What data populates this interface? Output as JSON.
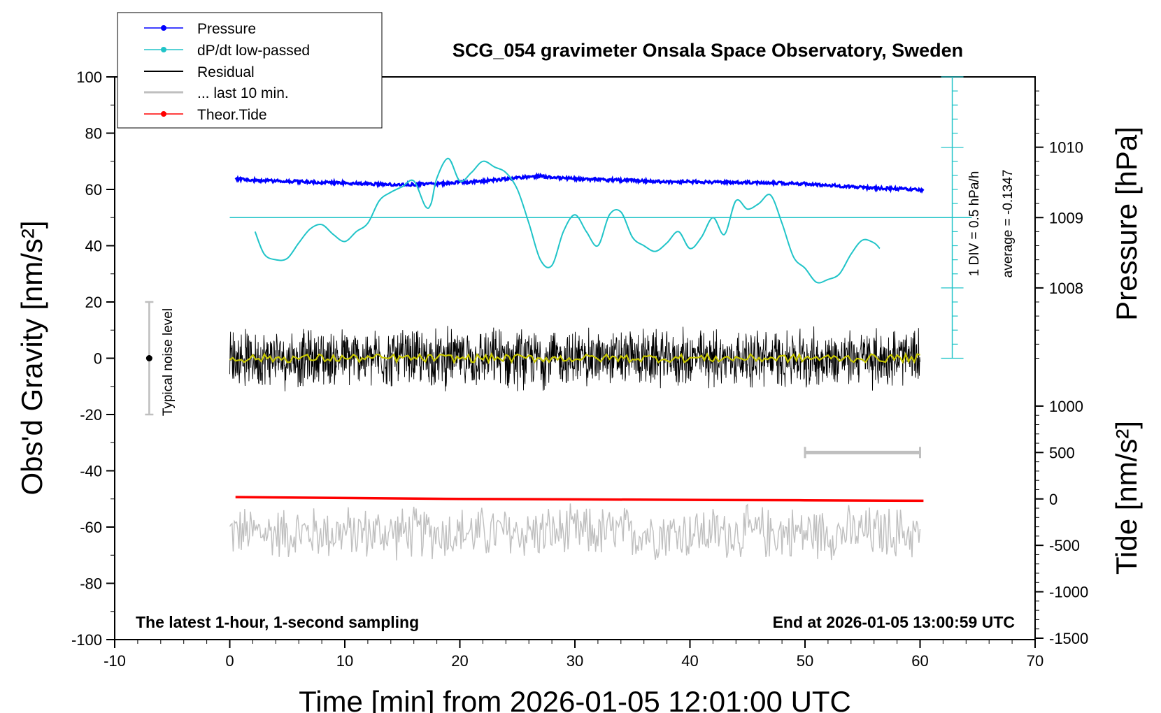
{
  "title": "SCG_054 gravimeter Onsala Space Observatory, Sweden",
  "note_left": "The latest 1-hour, 1-second sampling",
  "note_right": "End at 2026-01-05 13:00:59 UTC",
  "noise_label": "Typical noise level",
  "div_note": "1 DIV = 0.5 hPa/h",
  "average_note": "average = -0.1347",
  "colors": {
    "pressure": "#0000ff",
    "dpdt": "#20c4c8",
    "residual": "#000000",
    "smoothed": "#c8c800",
    "last10": "#bfbfbf",
    "tide": "#ff0000"
  },
  "chart_data": {
    "type": "line",
    "title": "SCG_054 gravimeter Onsala Space Observatory, Sweden",
    "xlabel": "Time [min] from 2026-01-05 12:01:00 UTC",
    "ylabel": "Obs'd Gravity [nm/s²]",
    "y2label_pressure": "Pressure [hPa]",
    "y2label_tide": "Tide [nm/s²]",
    "xlim": [
      -10,
      70
    ],
    "ylim": [
      -100,
      100
    ],
    "pressure_lim": [
      1007,
      1011
    ],
    "tide_lim": [
      -1500,
      1500
    ],
    "x_ticks": [
      "-10",
      "0",
      "10",
      "20",
      "30",
      "40",
      "50",
      "60",
      "70"
    ],
    "y_ticks": [
      "100",
      "80",
      "60",
      "40",
      "20",
      "0",
      "-20",
      "-40",
      "-60",
      "-80",
      "-100"
    ],
    "pressure_ticks": [
      "1010",
      "1009",
      "1008"
    ],
    "tide_ticks": [
      "1000",
      "500",
      "0",
      "-500",
      "-1000",
      "-1500"
    ],
    "legend": [
      "Pressure",
      "dP/dt low-passed",
      "Residual",
      "... last 10 min.",
      "Theor.Tide"
    ],
    "legend_position": "top-left",
    "grid": false,
    "series": [
      {
        "name": "Pressure",
        "axis": "pressure",
        "x": [
          0.5,
          2,
          4,
          6,
          8,
          10,
          12,
          14,
          16,
          18,
          20,
          22,
          24,
          26,
          27,
          28,
          30,
          32,
          34,
          36,
          38,
          40,
          42,
          44,
          46,
          48,
          50,
          52,
          54,
          56,
          58,
          60.3
        ],
        "values": [
          1009.55,
          1009.53,
          1009.52,
          1009.51,
          1009.5,
          1009.49,
          1009.48,
          1009.47,
          1009.47,
          1009.48,
          1009.5,
          1009.52,
          1009.55,
          1009.58,
          1009.59,
          1009.57,
          1009.55,
          1009.54,
          1009.53,
          1009.52,
          1009.51,
          1009.51,
          1009.5,
          1009.5,
          1009.5,
          1009.49,
          1009.48,
          1009.46,
          1009.44,
          1009.42,
          1009.41,
          1009.39
        ]
      },
      {
        "name": "dP/dt low-passed",
        "axis": "gravity",
        "x": [
          2.2,
          3,
          4,
          5,
          6,
          7,
          8,
          9,
          10,
          11,
          12,
          13,
          14,
          15,
          16,
          17,
          17.5,
          18,
          19,
          20,
          21,
          22,
          23,
          24,
          25,
          26,
          27,
          28,
          29,
          30,
          31,
          32,
          33,
          34,
          35,
          36,
          37,
          38,
          39,
          40,
          41,
          42,
          43,
          44,
          45,
          46,
          47,
          48,
          49,
          50,
          51,
          52,
          53,
          54,
          55,
          56,
          56.5
        ],
        "values": [
          45,
          37,
          35,
          35.5,
          41,
          46,
          47.5,
          44,
          41.5,
          45,
          48,
          56,
          59,
          61,
          63,
          54,
          55,
          64,
          71,
          63,
          66,
          70,
          68,
          66,
          60,
          48,
          35,
          33,
          45,
          51,
          45,
          40,
          51,
          52,
          43,
          40,
          38,
          41,
          45,
          39,
          43,
          50,
          44,
          56,
          53,
          55,
          58,
          48,
          36,
          32,
          27,
          28,
          30,
          37,
          42,
          41,
          39
        ]
      },
      {
        "name": "Theor.Tide",
        "axis": "tide",
        "x": [
          0.5,
          10,
          20,
          30,
          40,
          50,
          60.3
        ],
        "values": [
          20,
          10,
          0,
          -5,
          -10,
          -15,
          -20
        ]
      }
    ],
    "residual": {
      "x_range": [
        0,
        60
      ],
      "mean": 0,
      "amplitude": 12
    },
    "last_10_min": {
      "x_range": [
        0,
        60
      ],
      "mean": -62,
      "amplitude": 9
    },
    "noise_bar": {
      "x": -7,
      "range": [
        -20,
        20
      ]
    },
    "last10_marker": {
      "range_min": [
        50,
        60
      ],
      "tide_value": 500
    },
    "dpdt_reference": {
      "average": -0.1347,
      "div": "1 DIV = 0.5 hPa/h",
      "zero_line_y": 50
    }
  }
}
